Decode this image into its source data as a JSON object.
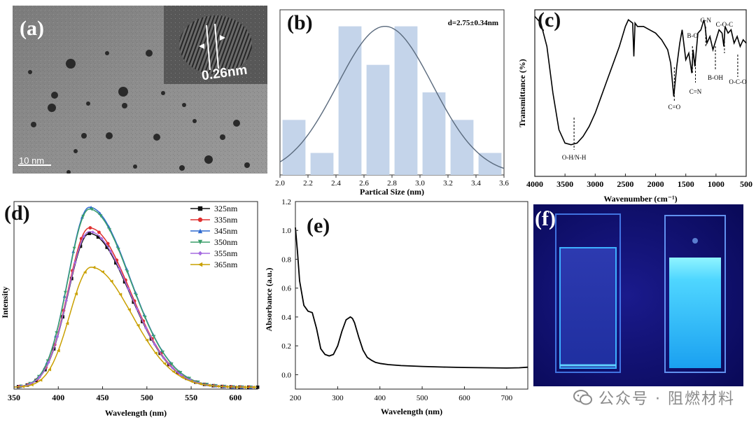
{
  "figure": {
    "panel_labels": {
      "a": "(a)",
      "b": "(b)",
      "c": "(c)",
      "d": "(d)",
      "e": "(e)",
      "f": "(f)"
    },
    "tem": {
      "scale_bar": "10 nm",
      "lattice": "0.26nm"
    },
    "watermark": "公众号 · 阻燃材料"
  },
  "chart_data": [
    {
      "id": "b",
      "type": "bar",
      "title": "",
      "annotation": "d=2.75±0.34nm",
      "xlabel": "Partical Size (nm)",
      "ylabel": "",
      "xlim": [
        2.0,
        3.6
      ],
      "ylim": [
        0,
        30
      ],
      "xticks": [
        "2.0",
        "2.2",
        "2.4",
        "2.6",
        "2.8",
        "3.0",
        "3.2",
        "3.4",
        "3.6"
      ],
      "bins": [
        2.1,
        2.3,
        2.5,
        2.7,
        2.9,
        3.1,
        3.3,
        3.5
      ],
      "values": [
        10,
        4,
        27,
        20,
        27,
        15,
        10,
        4
      ],
      "fit": {
        "mean": 2.75,
        "sd": 0.34,
        "peak": 27
      }
    },
    {
      "id": "c",
      "type": "line",
      "title": "",
      "xlabel": "Wavenumber (cm⁻¹)",
      "ylabel": "Transmittance (%)",
      "xlim": [
        4000,
        500
      ],
      "ylim": [
        0,
        100
      ],
      "xticks": [
        "4000",
        "3500",
        "3000",
        "2500",
        "2000",
        "1500",
        "1000",
        "500"
      ],
      "x": [
        4000,
        3900,
        3800,
        3700,
        3600,
        3500,
        3400,
        3300,
        3200,
        3100,
        3000,
        2900,
        2800,
        2700,
        2600,
        2500,
        2450,
        2380,
        2360,
        2340,
        2300,
        2200,
        2100,
        2000,
        1900,
        1800,
        1750,
        1700,
        1680,
        1650,
        1600,
        1560,
        1500,
        1450,
        1400,
        1380,
        1350,
        1300,
        1250,
        1200,
        1180,
        1150,
        1100,
        1050,
        1000,
        950,
        900,
        870,
        850,
        800,
        750,
        700,
        650,
        600,
        550,
        500
      ],
      "y": [
        96,
        92,
        78,
        50,
        28,
        20,
        19,
        20,
        24,
        30,
        38,
        48,
        58,
        68,
        78,
        90,
        94,
        92,
        72,
        92,
        90,
        90,
        88,
        86,
        82,
        76,
        68,
        48,
        55,
        66,
        80,
        88,
        70,
        74,
        62,
        76,
        66,
        86,
        88,
        94,
        90,
        80,
        84,
        76,
        82,
        88,
        86,
        78,
        90,
        86,
        88,
        80,
        84,
        78,
        82,
        80
      ],
      "annotations": [
        {
          "label": "O-H/N-H",
          "x": 3350
        },
        {
          "label": "C=O",
          "x": 1690
        },
        {
          "label": "B-O",
          "x": 1390
        },
        {
          "label": "C=N",
          "x": 1340
        },
        {
          "label": "C-N",
          "x": 1170
        },
        {
          "label": "B-OH",
          "x": 1010
        },
        {
          "label": "C-O-C",
          "x": 860
        },
        {
          "label": "O-C-O",
          "x": 640
        }
      ]
    },
    {
      "id": "d",
      "type": "line",
      "title": "",
      "xlabel": "Wavelength (nm)",
      "ylabel": "Intensity",
      "xlim": [
        350,
        625
      ],
      "ylim": [
        0,
        100
      ],
      "xticks": [
        "350",
        "400",
        "450",
        "500",
        "550",
        "600"
      ],
      "series": [
        {
          "name": "325nm",
          "color": "#111111",
          "peak": 435,
          "amp": 82
        },
        {
          "name": "335nm",
          "color": "#e03030",
          "peak": 435,
          "amp": 85
        },
        {
          "name": "345nm",
          "color": "#2f6ad0",
          "peak": 435,
          "amp": 96
        },
        {
          "name": "350nm",
          "color": "#3a9e6a",
          "peak": 435,
          "amp": 95
        },
        {
          "name": "355nm",
          "color": "#a56be0",
          "peak": 435,
          "amp": 83
        },
        {
          "name": "365nm",
          "color": "#c9a000",
          "peak": 437,
          "amp": 64
        }
      ]
    },
    {
      "id": "e",
      "type": "line",
      "title": "",
      "xlabel": "Wavelength (nm)",
      "ylabel": "Absorbance (a.u.)",
      "xlim": [
        200,
        750
      ],
      "ylim": [
        -0.1,
        1.2
      ],
      "xticks": [
        "200",
        "300",
        "400",
        "500",
        "600",
        "700"
      ],
      "yticks": [
        "0.0",
        "0.2",
        "0.4",
        "0.6",
        "0.8",
        "1.0",
        "1.2"
      ],
      "x": [
        200,
        205,
        210,
        220,
        230,
        240,
        250,
        260,
        270,
        280,
        290,
        300,
        310,
        320,
        330,
        335,
        340,
        350,
        360,
        370,
        380,
        390,
        400,
        420,
        450,
        500,
        550,
        600,
        650,
        700,
        730,
        750
      ],
      "y": [
        1.02,
        0.85,
        0.65,
        0.48,
        0.44,
        0.43,
        0.32,
        0.18,
        0.14,
        0.13,
        0.14,
        0.2,
        0.3,
        0.38,
        0.4,
        0.39,
        0.36,
        0.26,
        0.17,
        0.12,
        0.1,
        0.085,
        0.078,
        0.07,
        0.063,
        0.057,
        0.053,
        0.05,
        0.048,
        0.046,
        0.048,
        0.052
      ]
    }
  ]
}
